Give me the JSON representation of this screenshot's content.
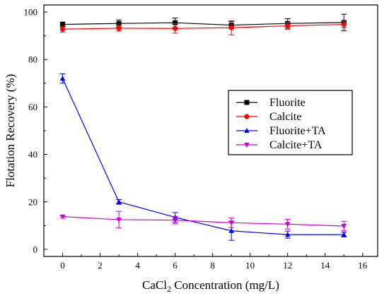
{
  "chart_data": {
    "type": "line",
    "xlabel": "CaCl",
    "xlabel_sub": "2",
    "xlabel_rest": " Concentration (mg/L)",
    "ylabel": "Flotation Recovery (%)",
    "xlim": [
      -1,
      16.8
    ],
    "ylim": [
      -3,
      103
    ],
    "xticks": [
      0,
      2,
      4,
      6,
      8,
      10,
      12,
      14,
      16
    ],
    "yticks": [
      0,
      20,
      40,
      60,
      80,
      100
    ],
    "grid": false,
    "legend_position": "right-middle",
    "x": [
      0,
      3,
      6,
      9,
      12,
      15
    ],
    "series": [
      {
        "name": "Fluorite",
        "color": "#000000",
        "marker": "square",
        "values": [
          94.8,
          95.2,
          95.5,
          94.5,
          95.2,
          95.6
        ],
        "errors": [
          1.0,
          1.5,
          2.0,
          1.5,
          2.0,
          3.5
        ]
      },
      {
        "name": "Calcite",
        "color": "#ff0000",
        "marker": "circle",
        "values": [
          92.8,
          93.2,
          93.1,
          93.4,
          94.2,
          94.8
        ],
        "errors": [
          1.2,
          1.2,
          2.0,
          3.0,
          1.5,
          1.5
        ]
      },
      {
        "name": "Fluorite+TA",
        "color": "#0000ff",
        "marker": "triangle",
        "values": [
          72.0,
          20.0,
          13.5,
          7.8,
          6.2,
          6.2
        ],
        "errors": [
          2.0,
          1.0,
          2.0,
          4.0,
          1.5,
          1.0
        ]
      },
      {
        "name": "Calcite+TA",
        "color": "#cc00cc",
        "marker": "triangle-down",
        "values": [
          13.8,
          12.5,
          12.3,
          11.2,
          10.6,
          9.8
        ],
        "errors": [
          0.5,
          3.5,
          1.5,
          2.0,
          2.0,
          2.0
        ]
      }
    ]
  }
}
